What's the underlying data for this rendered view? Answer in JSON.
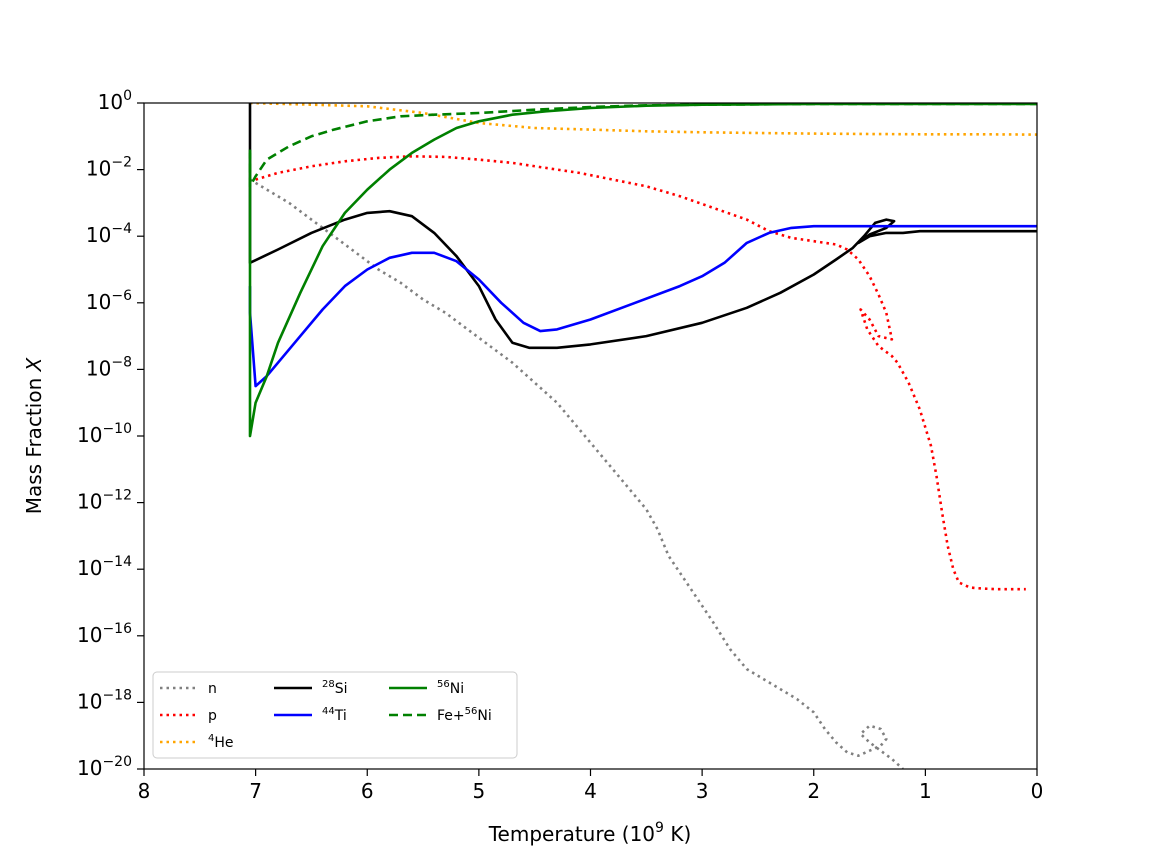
{
  "chart_data": {
    "type": "line",
    "title": "",
    "xlabel": {
      "prefix": "Temperature (10",
      "sup": "9",
      "suffix": " K)"
    },
    "ylabel": {
      "prefix": "Mass Fraction ",
      "var": "X"
    },
    "xlim": [
      8,
      0
    ],
    "ylim_log10": [
      -20,
      0
    ],
    "x_ticks": [
      8,
      7,
      6,
      5,
      4,
      3,
      2,
      1,
      0
    ],
    "y_tick_exponents": [
      0,
      -2,
      -4,
      -6,
      -8,
      -10,
      -12,
      -14,
      -16,
      -18,
      -20
    ],
    "y_tick_base": "10",
    "legend_position": "lower-left",
    "series": [
      {
        "id": "n",
        "name": "n",
        "sup": "",
        "color": "#808080",
        "style": "dotted",
        "points": [
          [
            7.05,
            -2.3
          ],
          [
            6.9,
            -2.6
          ],
          [
            6.7,
            -3.0
          ],
          [
            6.5,
            -3.5
          ],
          [
            6.3,
            -4.0
          ],
          [
            6.1,
            -4.5
          ],
          [
            5.9,
            -5.0
          ],
          [
            5.7,
            -5.4
          ],
          [
            5.5,
            -5.9
          ],
          [
            5.3,
            -6.3
          ],
          [
            5.1,
            -6.8
          ],
          [
            4.9,
            -7.3
          ],
          [
            4.7,
            -7.8
          ],
          [
            4.5,
            -8.4
          ],
          [
            4.3,
            -9.0
          ],
          [
            4.1,
            -9.8
          ],
          [
            3.9,
            -10.6
          ],
          [
            3.7,
            -11.4
          ],
          [
            3.5,
            -12.2
          ],
          [
            3.4,
            -12.8
          ],
          [
            3.3,
            -13.6
          ],
          [
            3.1,
            -14.6
          ],
          [
            2.9,
            -15.6
          ],
          [
            2.75,
            -16.4
          ],
          [
            2.6,
            -17.0
          ],
          [
            2.45,
            -17.3
          ],
          [
            2.3,
            -17.6
          ],
          [
            2.15,
            -17.9
          ],
          [
            2.0,
            -18.3
          ],
          [
            1.9,
            -18.8
          ],
          [
            1.8,
            -19.2
          ],
          [
            1.7,
            -19.5
          ],
          [
            1.6,
            -19.6
          ],
          [
            1.5,
            -19.45
          ],
          [
            1.4,
            -19.3
          ],
          [
            1.35,
            -19.1
          ],
          [
            1.4,
            -18.8
          ],
          [
            1.5,
            -18.7
          ],
          [
            1.58,
            -18.95
          ],
          [
            1.5,
            -19.2
          ],
          [
            1.4,
            -19.45
          ],
          [
            1.3,
            -19.7
          ],
          [
            1.2,
            -20.0
          ]
        ]
      },
      {
        "id": "p",
        "name": "p",
        "sup": "",
        "color": "#ff0000",
        "style": "dotted",
        "points": [
          [
            7.0,
            -2.3
          ],
          [
            6.8,
            -2.1
          ],
          [
            6.5,
            -1.9
          ],
          [
            6.2,
            -1.75
          ],
          [
            5.9,
            -1.65
          ],
          [
            5.6,
            -1.6
          ],
          [
            5.3,
            -1.62
          ],
          [
            5.0,
            -1.7
          ],
          [
            4.7,
            -1.8
          ],
          [
            4.4,
            -1.95
          ],
          [
            4.1,
            -2.1
          ],
          [
            3.8,
            -2.3
          ],
          [
            3.5,
            -2.5
          ],
          [
            3.2,
            -2.8
          ],
          [
            2.9,
            -3.15
          ],
          [
            2.6,
            -3.5
          ],
          [
            2.4,
            -3.85
          ],
          [
            2.2,
            -4.05
          ],
          [
            2.0,
            -4.15
          ],
          [
            1.8,
            -4.25
          ],
          [
            1.7,
            -4.4
          ],
          [
            1.6,
            -4.7
          ],
          [
            1.5,
            -5.2
          ],
          [
            1.42,
            -5.75
          ],
          [
            1.35,
            -6.3
          ],
          [
            1.3,
            -7.1
          ],
          [
            1.42,
            -7.0
          ],
          [
            1.5,
            -6.5
          ],
          [
            1.58,
            -6.2
          ],
          [
            1.52,
            -6.8
          ],
          [
            1.42,
            -7.3
          ],
          [
            1.3,
            -7.6
          ],
          [
            1.25,
            -7.8
          ],
          [
            1.15,
            -8.4
          ],
          [
            1.05,
            -9.2
          ],
          [
            0.95,
            -10.3
          ],
          [
            0.9,
            -11.2
          ],
          [
            0.85,
            -12.3
          ],
          [
            0.8,
            -13.3
          ],
          [
            0.75,
            -14.0
          ],
          [
            0.7,
            -14.4
          ],
          [
            0.6,
            -14.55
          ],
          [
            0.5,
            -14.58
          ],
          [
            0.35,
            -14.6
          ],
          [
            0.1,
            -14.6
          ]
        ]
      },
      {
        "id": "he4",
        "name": "He",
        "sup": "4",
        "color": "#ffa500",
        "style": "dotted",
        "points": [
          [
            7.05,
            0.0
          ],
          [
            6.5,
            -0.05
          ],
          [
            6.0,
            -0.1
          ],
          [
            5.5,
            -0.3
          ],
          [
            5.0,
            -0.6
          ],
          [
            4.5,
            -0.75
          ],
          [
            4.0,
            -0.8
          ],
          [
            3.5,
            -0.85
          ],
          [
            3.0,
            -0.88
          ],
          [
            2.5,
            -0.9
          ],
          [
            2.0,
            -0.92
          ],
          [
            1.5,
            -0.93
          ],
          [
            1.0,
            -0.94
          ],
          [
            0.5,
            -0.94
          ],
          [
            0.0,
            -0.95
          ]
        ]
      },
      {
        "id": "si28",
        "name": "Si",
        "sup": "28",
        "color": "#000000",
        "style": "solid",
        "points": [
          [
            7.05,
            0.0
          ],
          [
            7.05,
            -4.8
          ],
          [
            6.8,
            -4.4
          ],
          [
            6.5,
            -3.9
          ],
          [
            6.2,
            -3.5
          ],
          [
            6.0,
            -3.3
          ],
          [
            5.8,
            -3.25
          ],
          [
            5.6,
            -3.4
          ],
          [
            5.4,
            -3.9
          ],
          [
            5.2,
            -4.6
          ],
          [
            5.0,
            -5.5
          ],
          [
            4.85,
            -6.5
          ],
          [
            4.7,
            -7.2
          ],
          [
            4.55,
            -7.35
          ],
          [
            4.3,
            -7.35
          ],
          [
            4.0,
            -7.25
          ],
          [
            3.5,
            -7.0
          ],
          [
            3.0,
            -6.6
          ],
          [
            2.6,
            -6.15
          ],
          [
            2.3,
            -5.7
          ],
          [
            2.0,
            -5.15
          ],
          [
            1.8,
            -4.7
          ],
          [
            1.65,
            -4.35
          ],
          [
            1.55,
            -4.0
          ],
          [
            1.45,
            -3.6
          ],
          [
            1.35,
            -3.5
          ],
          [
            1.28,
            -3.55
          ],
          [
            1.35,
            -3.75
          ],
          [
            1.5,
            -3.95
          ],
          [
            1.6,
            -4.2
          ],
          [
            1.5,
            -4.0
          ],
          [
            1.35,
            -3.9
          ],
          [
            1.2,
            -3.9
          ],
          [
            1.05,
            -3.85
          ],
          [
            0.9,
            -3.85
          ],
          [
            0.5,
            -3.85
          ],
          [
            0.0,
            -3.85
          ]
        ]
      },
      {
        "id": "ti44",
        "name": "Ti",
        "sup": "44",
        "color": "#0000ff",
        "style": "solid",
        "points": [
          [
            7.05,
            -5.5
          ],
          [
            7.05,
            -6.3
          ],
          [
            7.0,
            -8.5
          ],
          [
            6.9,
            -8.2
          ],
          [
            6.8,
            -7.8
          ],
          [
            6.6,
            -7.0
          ],
          [
            6.4,
            -6.2
          ],
          [
            6.2,
            -5.5
          ],
          [
            6.0,
            -5.0
          ],
          [
            5.8,
            -4.65
          ],
          [
            5.6,
            -4.5
          ],
          [
            5.4,
            -4.5
          ],
          [
            5.2,
            -4.75
          ],
          [
            5.0,
            -5.3
          ],
          [
            4.8,
            -6.0
          ],
          [
            4.6,
            -6.6
          ],
          [
            4.45,
            -6.85
          ],
          [
            4.3,
            -6.8
          ],
          [
            4.0,
            -6.5
          ],
          [
            3.6,
            -6.0
          ],
          [
            3.2,
            -5.5
          ],
          [
            3.0,
            -5.2
          ],
          [
            2.8,
            -4.8
          ],
          [
            2.6,
            -4.2
          ],
          [
            2.4,
            -3.9
          ],
          [
            2.2,
            -3.75
          ],
          [
            2.0,
            -3.7
          ],
          [
            1.5,
            -3.7
          ],
          [
            1.0,
            -3.7
          ],
          [
            0.0,
            -3.7
          ]
        ]
      },
      {
        "id": "ni56",
        "name": "Ni",
        "sup": "56",
        "color": "#008000",
        "style": "solid",
        "points": [
          [
            7.05,
            -1.5
          ],
          [
            7.05,
            -10.0
          ],
          [
            7.0,
            -9.0
          ],
          [
            6.9,
            -8.2
          ],
          [
            6.8,
            -7.2
          ],
          [
            6.6,
            -5.7
          ],
          [
            6.4,
            -4.3
          ],
          [
            6.2,
            -3.3
          ],
          [
            6.0,
            -2.6
          ],
          [
            5.8,
            -2.0
          ],
          [
            5.6,
            -1.5
          ],
          [
            5.4,
            -1.1
          ],
          [
            5.2,
            -0.75
          ],
          [
            5.0,
            -0.55
          ],
          [
            4.7,
            -0.35
          ],
          [
            4.4,
            -0.25
          ],
          [
            4.0,
            -0.15
          ],
          [
            3.5,
            -0.08
          ],
          [
            3.0,
            -0.05
          ],
          [
            2.0,
            -0.03
          ],
          [
            1.0,
            -0.03
          ],
          [
            0.0,
            -0.03
          ]
        ]
      },
      {
        "id": "fe_ni56",
        "name": "Fe+",
        "sup": "56",
        "suffix": "Ni",
        "color": "#008000",
        "style": "dashed",
        "points": [
          [
            7.05,
            -1.4
          ],
          [
            7.05,
            -2.5
          ],
          [
            7.0,
            -2.2
          ],
          [
            6.9,
            -1.7
          ],
          [
            6.7,
            -1.3
          ],
          [
            6.5,
            -1.0
          ],
          [
            6.3,
            -0.8
          ],
          [
            6.0,
            -0.55
          ],
          [
            5.7,
            -0.4
          ],
          [
            5.4,
            -0.35
          ],
          [
            5.0,
            -0.3
          ],
          [
            4.5,
            -0.2
          ],
          [
            4.0,
            -0.12
          ],
          [
            3.5,
            -0.07
          ],
          [
            3.0,
            -0.05
          ],
          [
            2.0,
            -0.03
          ],
          [
            0.0,
            -0.03
          ]
        ]
      }
    ]
  }
}
